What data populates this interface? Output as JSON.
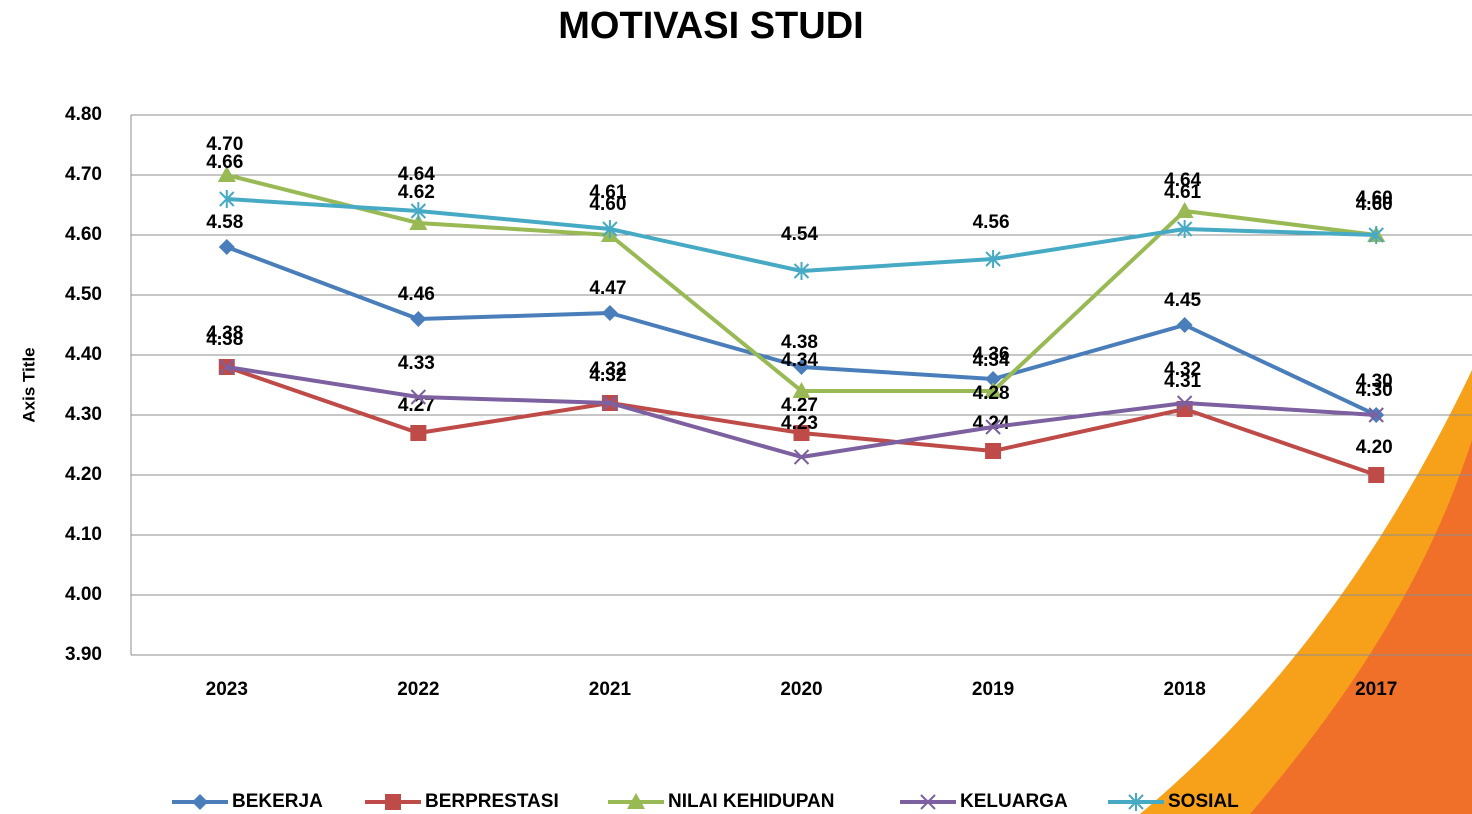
{
  "chart_data": {
    "type": "line",
    "title": "MOTIVASI STUDI",
    "y_label": "Axis Title",
    "categories": [
      "2023",
      "2022",
      "2021",
      "2020",
      "2019",
      "2018",
      "2017"
    ],
    "ylim": [
      3.9,
      4.8
    ],
    "yticks": [
      {
        "value": 3.9,
        "label": "3.90"
      },
      {
        "value": 4.0,
        "label": "4.00"
      },
      {
        "value": 4.1,
        "label": "4.10"
      },
      {
        "value": 4.2,
        "label": "4.20"
      },
      {
        "value": 4.3,
        "label": "4.30"
      },
      {
        "value": 4.4,
        "label": "4.40"
      },
      {
        "value": 4.5,
        "label": "4.50"
      },
      {
        "value": 4.6,
        "label": "4.60"
      },
      {
        "value": 4.7,
        "label": "4.70"
      },
      {
        "value": 4.8,
        "label": "4.80"
      }
    ],
    "grid": true,
    "legend": "bottom",
    "series": [
      {
        "name": "BEKERJA",
        "color": "#4a7ebb",
        "marker": "diamond",
        "values": [
          4.58,
          4.46,
          4.47,
          4.38,
          4.36,
          4.45,
          4.3
        ],
        "value_labels": [
          "4.58",
          "4.46",
          "4.47",
          "4.38",
          "4.36",
          "4.45",
          "4.30"
        ]
      },
      {
        "name": "BERPRESTASI",
        "color": "#be4b48",
        "marker": "square",
        "values": [
          4.38,
          4.27,
          4.32,
          4.27,
          4.24,
          4.31,
          4.2
        ],
        "value_labels": [
          "4.38",
          "4.27",
          "4.32",
          "4.27",
          "4.24",
          "4.31",
          "4.20"
        ]
      },
      {
        "name": "NILAI KEHIDUPAN",
        "color": "#98b954",
        "marker": "triangle",
        "values": [
          4.7,
          4.62,
          4.6,
          4.34,
          4.34,
          4.64,
          4.6
        ],
        "value_labels": [
          "4.70",
          "4.62",
          "4.60",
          "4.34",
          "4.34",
          "4.64",
          "4.60"
        ]
      },
      {
        "name": "KELUARGA",
        "color": "#7d60a0",
        "marker": "x",
        "values": [
          4.38,
          4.33,
          4.32,
          4.23,
          4.28,
          4.32,
          4.3
        ],
        "value_labels": [
          "4.38",
          "4.33",
          "4.32",
          "4.23",
          "4.28",
          "4.32",
          "4.30"
        ]
      },
      {
        "name": "SOSIAL",
        "color": "#46aac5",
        "marker": "star",
        "values": [
          4.66,
          4.64,
          4.61,
          4.54,
          4.56,
          4.61,
          4.6
        ],
        "value_labels": [
          "4.66",
          "4.64",
          "4.61",
          "4.54",
          "4.56",
          "4.61",
          "4.60"
        ]
      }
    ]
  }
}
